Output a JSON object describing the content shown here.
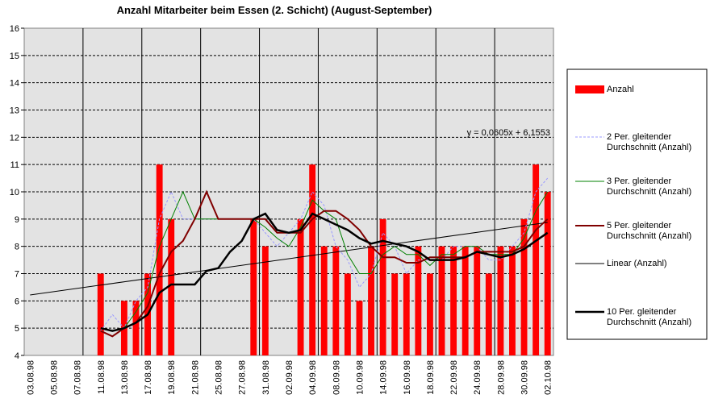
{
  "chart_data": {
    "type": "bar_line",
    "title": "Anzahl Mitarbeiter beim Essen (2. Schicht) (August-September)",
    "categories": [
      "03.08.98",
      null,
      "05.08.98",
      null,
      "07.08.98",
      null,
      "11.08.98",
      null,
      "13.08.98",
      null,
      "17.08.98",
      null,
      "19.08.98",
      null,
      "21.08.98",
      null,
      "25.08.98",
      null,
      "27.08.98",
      null,
      "31.08.98",
      null,
      "02.09.98",
      null,
      "04.09.98",
      null,
      "08.09.98",
      null,
      "10.09.98",
      null,
      "14.09.98",
      null,
      "16.09.98",
      null,
      "18.09.98",
      null,
      "22.09.98",
      null,
      "24.09.98",
      null,
      "28.09.98",
      null,
      "30.09.98",
      null,
      "02.10.98"
    ],
    "ylim": [
      4,
      16
    ],
    "yticks": [
      4,
      5,
      6,
      7,
      8,
      9,
      10,
      11,
      12,
      13,
      14,
      15,
      16
    ],
    "grid": true,
    "legend": "right",
    "series": [
      {
        "name": "Anzahl",
        "kind": "bar",
        "color": "#ff0000",
        "values": [
          null,
          null,
          null,
          null,
          null,
          null,
          7,
          null,
          6,
          6,
          7,
          11,
          9,
          null,
          null,
          null,
          null,
          null,
          null,
          9,
          8,
          null,
          null,
          9,
          11,
          8,
          8,
          7,
          6,
          8,
          9,
          7,
          7,
          8,
          7,
          8,
          8,
          8,
          8,
          7,
          8,
          8,
          9,
          11,
          10
        ]
      },
      {
        "name": "2 Per. gleitender Durchschnitt (Anzahl)",
        "kind": "line",
        "color": "#9999ff",
        "dash": true,
        "width": 1,
        "values": [
          null,
          null,
          null,
          null,
          null,
          null,
          4.9,
          5.5,
          5.0,
          6.0,
          6.5,
          9.0,
          10.0,
          9.0,
          9.0,
          9.0,
          9.0,
          9.0,
          9.0,
          9.0,
          8.5,
          8.0,
          8.5,
          9.0,
          10.0,
          9.5,
          8.0,
          7.5,
          6.5,
          7.0,
          8.5,
          8.0,
          7.0,
          7.5,
          7.5,
          7.5,
          8.0,
          8.0,
          8.0,
          7.5,
          7.5,
          8.0,
          8.5,
          10.0,
          10.5
        ]
      },
      {
        "name": "3 Per. gleitender Durchschnitt (Anzahl)",
        "kind": "line",
        "color": "#008000",
        "dash": false,
        "width": 1,
        "values": [
          null,
          null,
          null,
          null,
          null,
          null,
          4.9,
          4.7,
          5.0,
          5.6,
          6.3,
          8.0,
          9.0,
          10.0,
          9.0,
          9.0,
          9.0,
          9.0,
          9.0,
          9.0,
          8.7,
          8.3,
          8.0,
          8.7,
          9.7,
          9.3,
          9.0,
          7.7,
          7.0,
          7.0,
          7.7,
          8.0,
          7.7,
          7.7,
          7.3,
          7.7,
          7.7,
          8.0,
          8.0,
          7.7,
          7.7,
          7.7,
          8.3,
          9.3,
          10.0
        ]
      },
      {
        "name": "5 Per. gleitender Durchschnitt (Anzahl)",
        "kind": "line",
        "color": "#800000",
        "dash": false,
        "width": 2,
        "values": [
          null,
          null,
          null,
          null,
          null,
          null,
          4.9,
          4.7,
          5.0,
          5.2,
          5.8,
          7.0,
          7.8,
          8.2,
          9.0,
          10.0,
          9.0,
          9.0,
          9.0,
          9.0,
          9.0,
          8.5,
          8.5,
          8.5,
          9.0,
          9.3,
          9.3,
          9.0,
          8.6,
          8.0,
          7.6,
          7.6,
          7.4,
          7.4,
          7.6,
          7.6,
          7.6,
          7.6,
          7.8,
          7.8,
          7.8,
          7.8,
          8.0,
          8.6,
          9.0
        ]
      },
      {
        "name": "10 Per. gleitender Durchschnitt (Anzahl)",
        "kind": "line",
        "color": "#000000",
        "dash": false,
        "width": 2.5,
        "values": [
          null,
          null,
          null,
          null,
          null,
          null,
          5.0,
          4.9,
          5.0,
          5.2,
          5.5,
          6.3,
          6.6,
          6.6,
          6.6,
          7.1,
          7.2,
          7.8,
          8.2,
          9.0,
          9.2,
          8.6,
          8.5,
          8.6,
          9.2,
          9.0,
          8.8,
          8.6,
          8.3,
          8.1,
          8.2,
          8.1,
          8.0,
          7.8,
          7.5,
          7.5,
          7.5,
          7.6,
          7.8,
          7.7,
          7.6,
          7.7,
          7.9,
          8.2,
          8.5
        ]
      }
    ],
    "trendline": {
      "name": "Linear (Anzahl)",
      "color": "#000000",
      "slope": 0.0605,
      "intercept": 6.1553,
      "equation": "y = 0,0605x + 6,1553"
    }
  }
}
